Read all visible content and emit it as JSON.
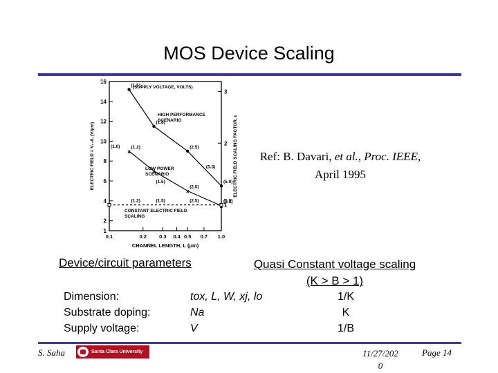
{
  "slide": {
    "title": "MOS Device Scaling",
    "reference": {
      "prefix": "Ref: B. Davari, ",
      "etal": "et al.",
      "comma": ", ",
      "journal": "Proc. IEEE",
      "date": ", April 1995"
    }
  },
  "chart_data": {
    "type": "line",
    "xlabel": "CHANNEL LENGTH, L (μm)",
    "ylabel": "ELECTRIC FIELD = V₀₀/L (V/μm)",
    "y2label": "ELECTRIC FIELD SCALING FACTOR, ε",
    "x_scale": "log",
    "x_ticks": [
      "0.1",
      "0.2",
      "0.3",
      "0.4",
      "0.5",
      "0.7",
      "1.0"
    ],
    "y_ticks": [
      "1",
      "2",
      "4",
      "6",
      "8",
      "10",
      "12",
      "14",
      "16"
    ],
    "y2_ticks": [
      "1",
      "2",
      "3"
    ],
    "xlim": [
      0.1,
      1.0
    ],
    "ylim": [
      1,
      16
    ],
    "series": [
      {
        "name": "HIGH PERFORMANCE SCENARIO",
        "points": [
          [
            0.15,
            15.2
          ],
          [
            0.25,
            11.5
          ],
          [
            0.5,
            9.0
          ],
          [
            1.0,
            5.5
          ]
        ],
        "labels": [
          {
            "x": 0.15,
            "y": 15.2,
            "text": "(1.5)"
          },
          {
            "x": 0.25,
            "y": 11.5,
            "text": "(1.8)"
          },
          {
            "x": 0.5,
            "y": 9.0,
            "text": "(2.5)"
          },
          {
            "x": 0.7,
            "y": 7.0,
            "text": "(3.3)"
          },
          {
            "x": 1.0,
            "y": 5.5,
            "text": "(5.0)"
          }
        ]
      },
      {
        "name": "LOW POWER SCENARIO",
        "points": [
          [
            0.15,
            9.0
          ],
          [
            0.25,
            7.0
          ],
          [
            0.5,
            5.0
          ],
          [
            1.0,
            3.5
          ]
        ],
        "labels": [
          {
            "x": 0.15,
            "y": 9.0,
            "text": "(1.2)"
          },
          {
            "x": 0.5,
            "y": 5.0,
            "text": "(2.5)"
          },
          {
            "x": 0.25,
            "y": 5.5,
            "text": "(1.5)"
          },
          {
            "x": 1.0,
            "y": 3.5,
            "text": "(3.3)"
          }
        ]
      },
      {
        "name": "CONSTANT ELECTRIC FIELD SCALING",
        "points": [
          [
            0.1,
            3.6
          ],
          [
            1.0,
            3.6
          ]
        ],
        "labels": [
          {
            "x": 0.15,
            "y": 3.6,
            "text": "(1.2)"
          },
          {
            "x": 0.25,
            "y": 3.6,
            "text": "(1.5)"
          },
          {
            "x": 0.5,
            "y": 3.6,
            "text": "(2.5)"
          },
          {
            "x": 1.0,
            "y": 3.6,
            "text": "(5.0)"
          }
        ]
      }
    ],
    "annotations": [
      "(SUPPLY VOLTAGE, VOLTS)",
      "(1.0)",
      "HIGH PERFORMANCE SCENARIO",
      "LOW POWER SCENARIO",
      "CONSTANT ELECTRIC FIELD SCALING"
    ]
  },
  "table": {
    "header_left": "Device/circuit parameters",
    "header_right_line1": "Quasi Constant voltage scaling",
    "header_right_line2": "(K > B > 1)",
    "rows": [
      {
        "label": "Dimension:",
        "symbol": "tox, L, W, xj, lo",
        "value": "1/K"
      },
      {
        "label": "Substrate doping:",
        "symbol": "Na",
        "value": "K"
      },
      {
        "label": "Supply voltage:",
        "symbol": "V",
        "value": "1/B"
      }
    ]
  },
  "footer": {
    "author": "S. Saha",
    "logo_text": "Santa Clara University",
    "date_line1": "11/27/202",
    "date_line2": "0",
    "page": "Page 14"
  }
}
